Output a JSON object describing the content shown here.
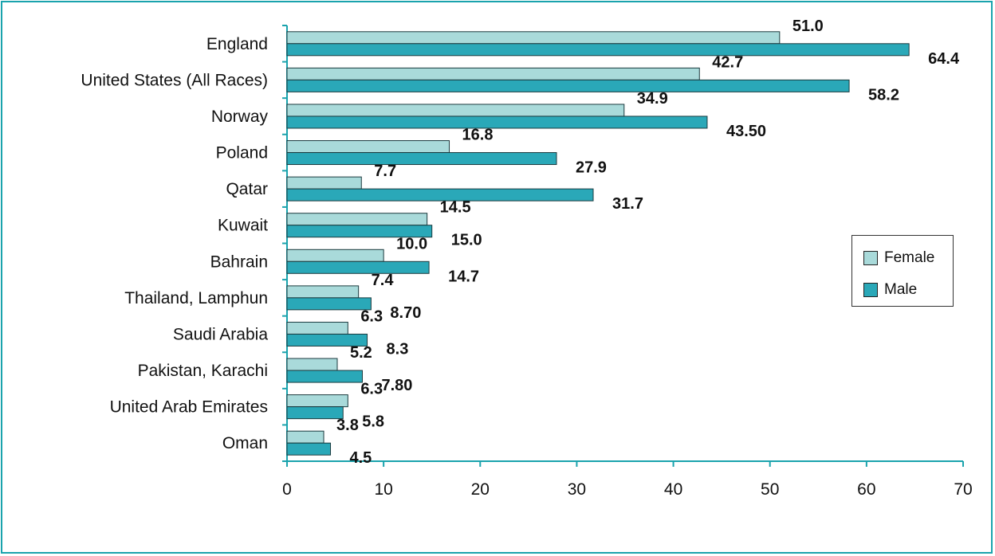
{
  "chart_data": {
    "type": "bar",
    "orientation": "horizontal",
    "categories": [
      "England",
      "United States (All Races)",
      "Norway",
      "Poland",
      "Qatar",
      "Kuwait",
      "Bahrain",
      "Thailand, Lamphun",
      "Saudi Arabia",
      "Pakistan, Karachi",
      "United Arab Emirates",
      "Oman"
    ],
    "series": [
      {
        "name": "Female",
        "color": "#a9dada",
        "values": [
          51.0,
          42.7,
          34.9,
          16.8,
          7.7,
          14.5,
          10.0,
          7.4,
          6.3,
          5.2,
          6.3,
          3.8
        ],
        "labels": [
          "51.0",
          "42.7",
          "34.9",
          "16.8",
          "7.7",
          "14.5",
          "10.0",
          "7.4",
          "6.3",
          "5.2",
          "6.3",
          "3.8"
        ]
      },
      {
        "name": "Male",
        "color": "#2aa8b8",
        "values": [
          64.4,
          58.2,
          43.5,
          27.9,
          31.7,
          15.0,
          14.7,
          8.7,
          8.3,
          7.8,
          5.8,
          4.5
        ],
        "labels": [
          "64.4",
          "58.2",
          "43.50",
          "27.9",
          "31.7",
          "15.0",
          "14.7",
          "8.70",
          "8.3",
          "7.80",
          "5.8",
          "4.5"
        ]
      }
    ],
    "xlim": [
      0,
      70
    ],
    "xticks": [
      "0",
      "10",
      "20",
      "30",
      "40",
      "50",
      "60",
      "70"
    ],
    "title": "",
    "xlabel": "",
    "ylabel": "",
    "grid": false,
    "legend_position": "right"
  },
  "legend": {
    "female_label": "Female",
    "male_label": "Male",
    "female_color": "#a9dada",
    "male_color": "#2aa8b8"
  },
  "colors": {
    "frame": "#1aa3ad",
    "axis": "#1aa3ad"
  }
}
